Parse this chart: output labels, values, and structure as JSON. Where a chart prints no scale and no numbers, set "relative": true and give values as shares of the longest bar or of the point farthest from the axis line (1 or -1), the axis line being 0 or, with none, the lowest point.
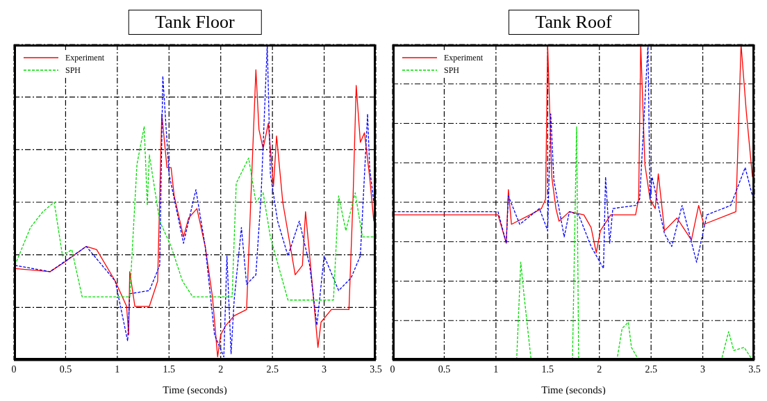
{
  "chart_data": [
    {
      "type": "line",
      "title": "Tank Floor",
      "xlabel": "Time (seconds)",
      "relative": true,
      "xlim": [
        0,
        3.5
      ],
      "xticks": [
        0,
        0.5,
        1,
        1.5,
        2,
        2.5,
        3,
        3.5
      ],
      "tick_labels": "x",
      "grid": true,
      "legend": "top left",
      "marker": "none",
      "series": [
        {
          "name": "Experiment",
          "color": "#ff0000",
          "line_style": "solid",
          "x": [
            0.01,
            0.35,
            0.49,
            0.7,
            0.8,
            0.98,
            1.09,
            1.11,
            1.12,
            1.17,
            1.31,
            1.39,
            1.43,
            1.48,
            1.52,
            1.55,
            1.64,
            1.69,
            1.77,
            1.85,
            1.92,
            1.97,
            2.0,
            2.05,
            2.13,
            2.25,
            2.29,
            2.34,
            2.37,
            2.41,
            2.46,
            2.51,
            2.54,
            2.6,
            2.72,
            2.79,
            2.82,
            2.86,
            2.94,
            2.97,
            3.07,
            3.24,
            3.28,
            3.31,
            3.35,
            3.39,
            3.44,
            3.48
          ],
          "values": [
            0.29,
            0.28,
            0.31,
            0.36,
            0.35,
            0.25,
            0.17,
            0.08,
            0.28,
            0.17,
            0.17,
            0.25,
            0.78,
            0.61,
            0.61,
            0.52,
            0.39,
            0.45,
            0.48,
            0.36,
            0.2,
            0.01,
            0.08,
            0.11,
            0.14,
            0.16,
            0.5,
            0.92,
            0.73,
            0.67,
            0.75,
            0.55,
            0.71,
            0.5,
            0.27,
            0.3,
            0.47,
            0.33,
            0.04,
            0.12,
            0.16,
            0.16,
            0.52,
            0.87,
            0.69,
            0.72,
            0.58,
            0.44
          ]
        },
        {
          "color": "#0000ff",
          "line_style": "dashed",
          "x": [
            0.01,
            0.35,
            0.7,
            0.98,
            1.1,
            1.12,
            1.31,
            1.41,
            1.44,
            1.5,
            1.64,
            1.76,
            1.85,
            1.94,
            2.03,
            2.06,
            2.1,
            2.13,
            2.2,
            2.25,
            2.34,
            2.39,
            2.45,
            2.48,
            2.55,
            2.65,
            2.76,
            2.86,
            2.93,
            3.0,
            3.14,
            3.26,
            3.35,
            3.42,
            3.44,
            3.48
          ],
          "values": [
            0.3,
            0.28,
            0.36,
            0.25,
            0.06,
            0.21,
            0.22,
            0.3,
            0.9,
            0.59,
            0.37,
            0.54,
            0.36,
            0.08,
            0.01,
            0.33,
            0.02,
            0.19,
            0.42,
            0.24,
            0.27,
            0.52,
            1,
            0.59,
            0.44,
            0.33,
            0.44,
            0.3,
            0.11,
            0.33,
            0.22,
            0.26,
            0.33,
            0.78,
            0.61,
            0.5
          ]
        },
        {
          "name": "SPH",
          "color": "#00dd00",
          "line_style": "dashed",
          "x": [
            0.01,
            0.16,
            0.28,
            0.39,
            0.47,
            0.56,
            0.66,
            0.84,
            1.12,
            1.19,
            1.26,
            1.29,
            1.31,
            1.41,
            1.52,
            1.63,
            1.73,
            2.11,
            2.15,
            2.27,
            2.34,
            2.41,
            2.48,
            2.65,
            3.09,
            3.14,
            3.21,
            3.3,
            3.37,
            3.48
          ],
          "values": [
            0.3,
            0.42,
            0.47,
            0.5,
            0.33,
            0.35,
            0.2,
            0.2,
            0.2,
            0.62,
            0.74,
            0.49,
            0.65,
            0.44,
            0.36,
            0.25,
            0.2,
            0.2,
            0.56,
            0.64,
            0.5,
            0.53,
            0.39,
            0.19,
            0.19,
            0.52,
            0.41,
            0.53,
            0.39,
            0.39
          ]
        }
      ]
    },
    {
      "type": "line",
      "title": "Tank Roof",
      "xlabel": "Time (seconds)",
      "relative": true,
      "xlim": [
        0,
        3.5
      ],
      "xticks": [
        0,
        0.5,
        1,
        1.5,
        2,
        2.5,
        3,
        3.5
      ],
      "tick_labels": "x",
      "grid": true,
      "legend": "top left",
      "marker": "none",
      "series": [
        {
          "name": "Experiment",
          "color": "#ff0000",
          "line_style": "solid",
          "x": [
            0.01,
            1.02,
            1.1,
            1.12,
            1.15,
            1.33,
            1.44,
            1.48,
            1.5,
            1.54,
            1.58,
            1.61,
            1.71,
            1.85,
            1.92,
            1.97,
            2.01,
            2.11,
            2.35,
            2.38,
            2.4,
            2.44,
            2.49,
            2.54,
            2.57,
            2.63,
            2.75,
            2.89,
            2.96,
            3.01,
            3.32,
            3.37,
            3.42,
            3.48
          ],
          "values": [
            0.46,
            0.46,
            0.37,
            0.54,
            0.43,
            0.46,
            0.48,
            0.51,
            1,
            0.58,
            0.48,
            0.44,
            0.47,
            0.46,
            0.42,
            0.34,
            0.41,
            0.46,
            0.46,
            0.51,
            1,
            0.62,
            0.51,
            0.48,
            0.59,
            0.41,
            0.45,
            0.38,
            0.49,
            0.43,
            0.47,
            1,
            0.79,
            0.58
          ]
        },
        {
          "color": "#0000ff",
          "line_style": "dashed",
          "x": [
            0.01,
            1.02,
            1.1,
            1.12,
            1.23,
            1.42,
            1.5,
            1.53,
            1.56,
            1.66,
            1.71,
            1.8,
            1.92,
            2.04,
            2.06,
            2.1,
            2.13,
            2.35,
            2.39,
            2.47,
            2.49,
            2.51,
            2.63,
            2.7,
            2.8,
            2.94,
            3.04,
            3.27,
            3.41,
            3.48
          ],
          "values": [
            0.47,
            0.47,
            0.37,
            0.52,
            0.43,
            0.48,
            0.41,
            0.78,
            0.57,
            0.39,
            0.47,
            0.46,
            0.36,
            0.29,
            0.58,
            0.37,
            0.48,
            0.49,
            0.51,
            1,
            0.51,
            0.58,
            0.4,
            0.36,
            0.49,
            0.31,
            0.46,
            0.49,
            0.61,
            0.52
          ]
        },
        {
          "name": "SPH",
          "color": "#00dd00",
          "line_style": "dashed",
          "x": [
            1.2,
            1.24,
            1.27,
            1.34,
            1.74,
            1.78,
            1.8,
            2.17,
            2.22,
            2.28,
            2.31,
            2.38,
            3.18,
            3.25,
            3.3,
            3.4,
            3.48
          ],
          "values": [
            0,
            0.31,
            0.21,
            0,
            0,
            0.74,
            0,
            0,
            0.1,
            0.12,
            0.04,
            0,
            0,
            0.09,
            0.03,
            0.04,
            0
          ]
        }
      ]
    }
  ]
}
